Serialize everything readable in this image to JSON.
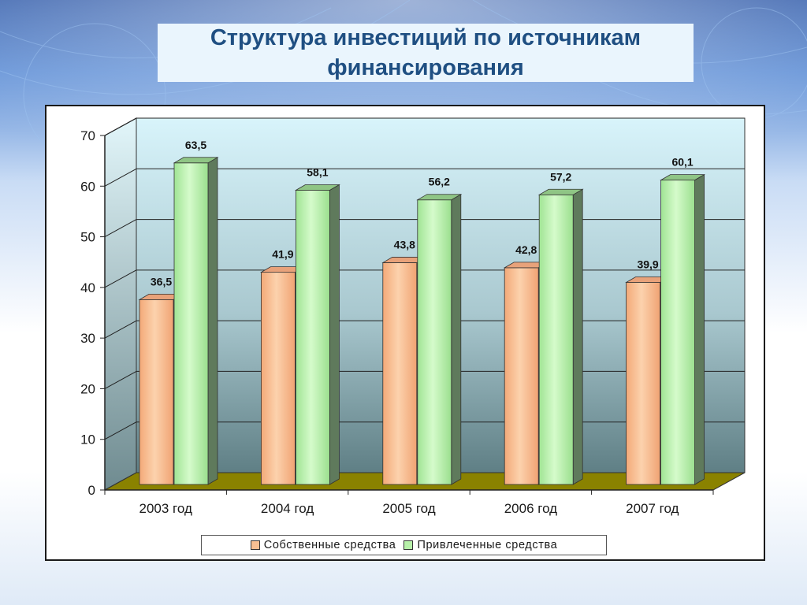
{
  "title": "Структура инвестиций по источникам финансирования",
  "colors": {
    "series_own": "#f7bf92",
    "series_borrowed": "#b7f0a9",
    "wall_top": "#d8f4fb",
    "wall_bottom": "#5f7f85",
    "floor": "#8a8200",
    "title_text": "#1f4f82"
  },
  "chart_data": {
    "type": "bar",
    "title": "",
    "xlabel": "",
    "ylabel": "",
    "ylim": [
      0,
      70
    ],
    "yticks": [
      0,
      10,
      20,
      30,
      40,
      50,
      60,
      70
    ],
    "categories": [
      "2003 год",
      "2004 год",
      "2005 год",
      "2006 год",
      "2007 год"
    ],
    "series": [
      {
        "name": "Собственные средства",
        "values": [
          36.5,
          41.9,
          43.8,
          42.8,
          39.9
        ],
        "labels": [
          "36,5",
          "41,9",
          "43,8",
          "42,8",
          "39,9"
        ]
      },
      {
        "name": "Привлеченные средства",
        "values": [
          63.5,
          58.1,
          56.2,
          57.2,
          60.1
        ],
        "labels": [
          "63,5",
          "58,1",
          "56,2",
          "57,2",
          "60,1"
        ]
      }
    ],
    "grid": true,
    "legend": "bottom"
  }
}
